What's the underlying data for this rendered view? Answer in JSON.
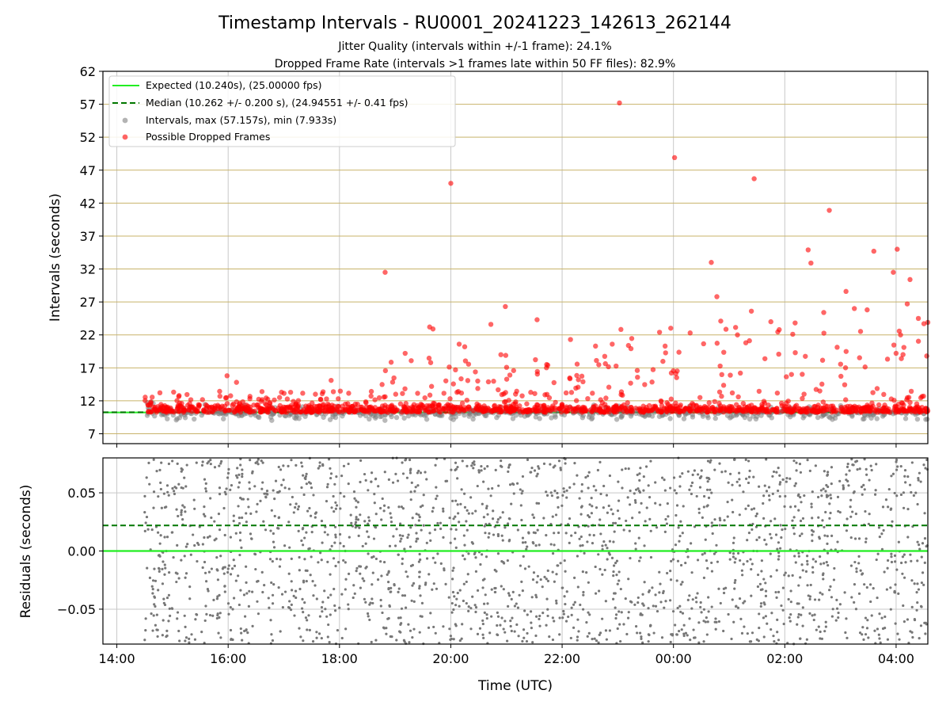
{
  "chart_data": [
    {
      "type": "scatter",
      "title": "Timestamp Intervals - RU0001_20241223_142613_262144",
      "subtitle_lines": [
        "Jitter Quality (intervals within +/-1 frame): 24.1%",
        "Dropped Frame Rate (intervals >1 frames late within 50 FF files): 82.9%"
      ],
      "xlabel": "",
      "ylabel": "Intervals (seconds)",
      "ylim": [
        5.5,
        62
      ],
      "yticks": [
        7,
        12,
        17,
        22,
        27,
        32,
        37,
        42,
        47,
        52,
        57,
        62
      ],
      "ytick_labels": [
        "7",
        "12",
        "17",
        "22",
        "27",
        "32",
        "37",
        "42",
        "47",
        "52",
        "57",
        "62"
      ],
      "xlim_hours": [
        13.75,
        28.57
      ],
      "xticks_hours": [
        14,
        16,
        18,
        20,
        22,
        24,
        26,
        28
      ],
      "grid": true,
      "legend_placement": "top-left",
      "legend": [
        "Expected (10.240s), (25.00000 fps)",
        "Median (10.262 +/- 0.200 s), (24.94551 +/- 0.41 fps)",
        "Intervals, max (57.157s), min (7.933s)",
        "Possible Dropped Frames"
      ],
      "reference_lines": {
        "expected": 10.24,
        "median": 10.262
      },
      "colors": {
        "expected": "#22ee22",
        "median": "#007700",
        "intervals": "#808080",
        "dropped": "#ff0000",
        "hgrid": "#c8b36a",
        "vgrid": "#c8c8c8"
      },
      "data_time_range_hours": [
        14.5,
        28.57
      ],
      "dropped_outliers": [
        {
          "x": 15.98,
          "y": 15.8
        },
        {
          "x": 16.15,
          "y": 14.8
        },
        {
          "x": 17.85,
          "y": 15.1
        },
        {
          "x": 18.82,
          "y": 31.5
        },
        {
          "x": 19.01,
          "y": 13.0
        },
        {
          "x": 19.18,
          "y": 19.2
        },
        {
          "x": 19.62,
          "y": 23.2
        },
        {
          "x": 19.68,
          "y": 22.9
        },
        {
          "x": 20.0,
          "y": 45.0
        },
        {
          "x": 20.15,
          "y": 20.6
        },
        {
          "x": 20.25,
          "y": 20.2
        },
        {
          "x": 20.72,
          "y": 23.6
        },
        {
          "x": 20.9,
          "y": 19.0
        },
        {
          "x": 20.98,
          "y": 26.3
        },
        {
          "x": 21.55,
          "y": 24.3
        },
        {
          "x": 22.15,
          "y": 21.3
        },
        {
          "x": 22.6,
          "y": 20.3
        },
        {
          "x": 22.9,
          "y": 20.6
        },
        {
          "x": 23.03,
          "y": 57.2
        },
        {
          "x": 23.35,
          "y": 16.6
        },
        {
          "x": 23.75,
          "y": 22.4
        },
        {
          "x": 23.85,
          "y": 20.3
        },
        {
          "x": 24.02,
          "y": 48.9
        },
        {
          "x": 24.3,
          "y": 22.3
        },
        {
          "x": 24.68,
          "y": 33.0
        },
        {
          "x": 24.78,
          "y": 27.8
        },
        {
          "x": 24.85,
          "y": 24.1
        },
        {
          "x": 25.15,
          "y": 22.0
        },
        {
          "x": 25.3,
          "y": 20.8
        },
        {
          "x": 25.4,
          "y": 25.6
        },
        {
          "x": 25.45,
          "y": 45.7
        },
        {
          "x": 25.75,
          "y": 24.0
        },
        {
          "x": 25.9,
          "y": 22.8
        },
        {
          "x": 26.12,
          "y": 16.0
        },
        {
          "x": 26.42,
          "y": 34.9
        },
        {
          "x": 26.47,
          "y": 32.9
        },
        {
          "x": 26.7,
          "y": 25.4
        },
        {
          "x": 26.8,
          "y": 40.9
        },
        {
          "x": 27.1,
          "y": 28.6
        },
        {
          "x": 27.25,
          "y": 26.0
        },
        {
          "x": 27.48,
          "y": 25.8
        },
        {
          "x": 27.6,
          "y": 34.7
        },
        {
          "x": 27.95,
          "y": 31.5
        },
        {
          "x": 28.02,
          "y": 35.0
        },
        {
          "x": 28.08,
          "y": 22.0
        },
        {
          "x": 28.14,
          "y": 20.1
        },
        {
          "x": 28.2,
          "y": 26.7
        },
        {
          "x": 28.25,
          "y": 30.4
        },
        {
          "x": 28.4,
          "y": 24.5
        },
        {
          "x": 28.5,
          "y": 23.7
        },
        {
          "x": 28.55,
          "y": 18.8
        },
        {
          "x": 28.57,
          "y": 23.9
        }
      ]
    },
    {
      "type": "scatter",
      "title": "",
      "xlabel": "Time (UTC)",
      "ylabel": "Residuals (seconds)",
      "ylim": [
        -0.08,
        0.08
      ],
      "yticks": [
        -0.05,
        0.0,
        0.05
      ],
      "ytick_labels": [
        "−0.05",
        "0.00",
        "0.05"
      ],
      "xlim_hours": [
        13.75,
        28.57
      ],
      "xticks_hours": [
        14,
        16,
        18,
        20,
        22,
        24,
        26,
        28
      ],
      "xtick_labels": [
        "14:00",
        "16:00",
        "18:00",
        "20:00",
        "22:00",
        "00:00",
        "02:00",
        "04:00"
      ],
      "grid": true,
      "reference_lines": {
        "expected": 0.0,
        "median": 0.022
      },
      "colors": {
        "points": "#777777",
        "expected": "#22ee22",
        "median": "#007700",
        "grid": "#c8c8c8"
      },
      "data_time_range_hours": [
        14.5,
        28.57
      ]
    }
  ]
}
